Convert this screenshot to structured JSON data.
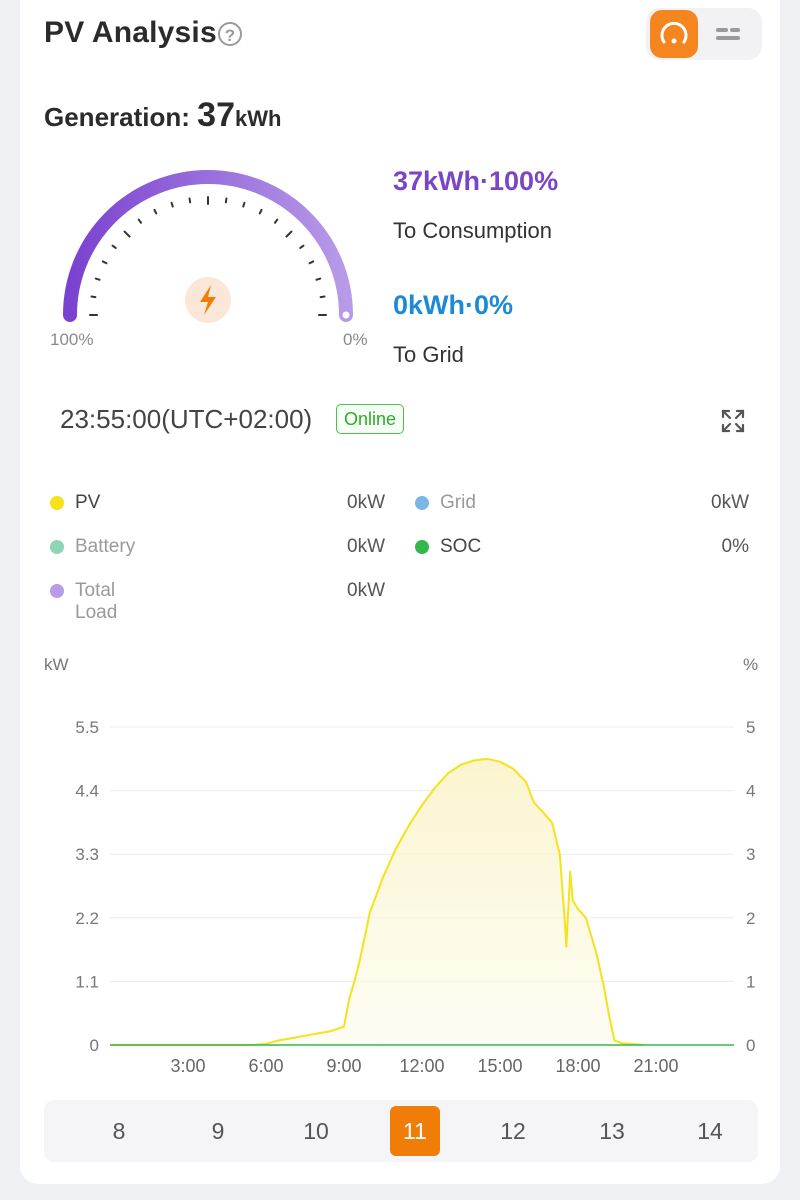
{
  "header": {
    "title": "PV Analysis"
  },
  "generation": {
    "label": "Generation:",
    "value": "37",
    "unit": "kWh"
  },
  "gauge": {
    "left_label": "100%",
    "right_label": "0%"
  },
  "consumption": {
    "value": "37kWh·100%",
    "label": "To Consumption"
  },
  "grid": {
    "value": "0kWh·0%",
    "label": "To Grid"
  },
  "status": {
    "time": "23:55:00(UTC+02:00)",
    "badge": "Online"
  },
  "legend": [
    {
      "name": "PV",
      "value": "0kW",
      "color": "#f5e21a",
      "active": true
    },
    {
      "name": "Grid",
      "value": "0kW",
      "color": "#7ab7e8",
      "active": false
    },
    {
      "name": "Battery",
      "value": "0kW",
      "color": "#8fd4b4",
      "active": false
    },
    {
      "name": "SOC",
      "value": "0%",
      "color": "#35b84b",
      "active": true
    },
    {
      "name": "Total Load",
      "value": "0kW",
      "color": "#b79ce6",
      "active": false
    }
  ],
  "chart_data": {
    "type": "area",
    "ylabel_left": "kW",
    "ylabel_right": "%",
    "y_ticks_left": [
      "0",
      "1.1",
      "2.2",
      "3.3",
      "4.4",
      "5.5"
    ],
    "y_ticks_right": [
      "0",
      "1",
      "2",
      "3",
      "4",
      "5"
    ],
    "ylim_left": [
      0,
      5.5
    ],
    "ylim_right": [
      0,
      5
    ],
    "x_ticks": [
      "3:00",
      "6:00",
      "9:00",
      "12:00",
      "15:00",
      "18:00",
      "21:00"
    ],
    "xlim_hours": [
      0,
      24
    ],
    "grid": true,
    "series": [
      {
        "name": "PV",
        "color": "#f5e21a",
        "points": [
          [
            0,
            0
          ],
          [
            5.5,
            0
          ],
          [
            6,
            0.02
          ],
          [
            6.5,
            0.08
          ],
          [
            7,
            0.12
          ],
          [
            7.5,
            0.16
          ],
          [
            8,
            0.2
          ],
          [
            8.5,
            0.24
          ],
          [
            9,
            0.32
          ],
          [
            9.2,
            0.8
          ],
          [
            9.4,
            1.1
          ],
          [
            9.6,
            1.45
          ],
          [
            10,
            2.3
          ],
          [
            10.5,
            2.9
          ],
          [
            11,
            3.4
          ],
          [
            11.5,
            3.8
          ],
          [
            12,
            4.15
          ],
          [
            12.5,
            4.45
          ],
          [
            13,
            4.7
          ],
          [
            13.5,
            4.85
          ],
          [
            14,
            4.92
          ],
          [
            14.5,
            4.95
          ],
          [
            15,
            4.9
          ],
          [
            15.5,
            4.78
          ],
          [
            16,
            4.55
          ],
          [
            16.3,
            4.2
          ],
          [
            16.6,
            4.05
          ],
          [
            17,
            3.85
          ],
          [
            17.3,
            3.3
          ],
          [
            17.5,
            2.1
          ],
          [
            17.55,
            1.7
          ],
          [
            17.7,
            3.0
          ],
          [
            17.8,
            2.5
          ],
          [
            18,
            2.35
          ],
          [
            18.3,
            2.2
          ],
          [
            18.7,
            1.6
          ],
          [
            19,
            1.0
          ],
          [
            19.2,
            0.5
          ],
          [
            19.4,
            0.08
          ],
          [
            19.7,
            0.03
          ],
          [
            20,
            0.02
          ],
          [
            20.5,
            0
          ]
        ]
      },
      {
        "name": "SOC",
        "color": "#35b84b",
        "points": [
          [
            0,
            0
          ],
          [
            24,
            0
          ]
        ]
      }
    ]
  },
  "days": [
    "8",
    "9",
    "10",
    "11",
    "12",
    "13",
    "14"
  ],
  "active_day": "11"
}
